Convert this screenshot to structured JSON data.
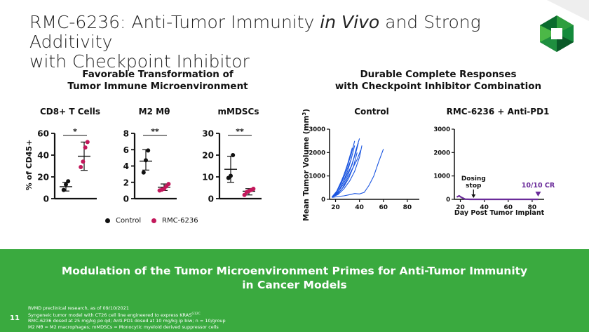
{
  "slide": {
    "title_part1": "RMC-6236: Anti-Tumor Immunity ",
    "title_italic": "in Vivo",
    "title_part2": " and Strong Additivity",
    "title_line2": "with Checkpoint Inhibitor",
    "page_number": "11",
    "colors": {
      "accent_green": "#3aaa3f",
      "pink": "#c2185b",
      "blue": "#1a55e0",
      "purple": "#6a2b9a",
      "dark_green": "#0b6b2e"
    }
  },
  "left_panel": {
    "heading_line1": "Favorable Transformation of",
    "heading_line2": "Tumor Immune Microenvironment",
    "ylabel": "% of CD45+",
    "legend": {
      "control": "Control",
      "treated": "RMC-6236"
    }
  },
  "right_panel": {
    "heading_line1": "Durable Complete Responses",
    "heading_line2": "with Checkpoint Inhibitor Combination",
    "ylabel": "Mean Tumor Volume (mm",
    "ylabel_sup": "3",
    "ylabel_end": ")",
    "xlabel": "Day Post Tumor Implant",
    "annotation_dosing_line1": "Dosing",
    "annotation_dosing_line2": "stop",
    "annotation_cr": "10/10 CR"
  },
  "banner": {
    "line1": "Modulation of the Tumor Microenvironment Primes for Anti-Tumor Immunity",
    "line2": "in Cancer Models"
  },
  "footnotes": {
    "line1": "RVMD preclinical research, as of 09/10/2021",
    "line2": "Syngeneic tumor model with CT26 cell line engineered to express KRAS",
    "line2_sup": "G12C",
    "line3": "RMC-6236 dosed at 25 mg/kg po qd; Anti-PD1 dosed at 10 mg/kg ip biw; n = 10/group",
    "line4": "M2 Mθ = M2 macrophages; mMDSCs = Monocytic myeloid derived suppressor cells"
  },
  "chart_data": [
    {
      "type": "scatter",
      "title": "CD8+ T Cells",
      "ylabel": "% of CD45+",
      "ylim": [
        0,
        60
      ],
      "yticks": [
        "0",
        "20",
        "40",
        "60"
      ],
      "significance": "*",
      "groups": [
        {
          "name": "Control",
          "color": "#111111",
          "points": [
            8,
            13,
            16
          ],
          "mean": 11,
          "sd": [
            7,
            15
          ]
        },
        {
          "name": "RMC-6236",
          "color": "#c2185b",
          "points": [
            29,
            34,
            47,
            52
          ],
          "mean": 39,
          "sd": [
            26,
            52
          ]
        }
      ]
    },
    {
      "type": "scatter",
      "title": "M2 Mθ",
      "ylim": [
        0,
        8
      ],
      "yticks": [
        "0",
        "2",
        "4",
        "6",
        "8"
      ],
      "significance": "**",
      "groups": [
        {
          "name": "Control",
          "color": "#111111",
          "points": [
            3.2,
            4.7,
            5.9
          ],
          "mean": 4.6,
          "sd": [
            3.5,
            6.0
          ]
        },
        {
          "name": "RMC-6236",
          "color": "#c2185b",
          "points": [
            1.0,
            1.1,
            1.2,
            1.5,
            1.8
          ],
          "mean": 1.4,
          "sd": [
            1.0,
            1.8
          ]
        }
      ]
    },
    {
      "type": "scatter",
      "title": "mMDSCs",
      "ylim": [
        0,
        30
      ],
      "yticks": [
        "0",
        "10",
        "20",
        "30"
      ],
      "significance": "**",
      "groups": [
        {
          "name": "Control",
          "color": "#111111",
          "points": [
            9.5,
            10.5,
            20
          ],
          "mean": 13.5,
          "sd": [
            7.5,
            19.5
          ]
        },
        {
          "name": "RMC-6236",
          "color": "#c2185b",
          "points": [
            1.7,
            3.0,
            3.5,
            4.0,
            4.5
          ],
          "mean": 3.4,
          "sd": [
            1.7,
            4.6
          ]
        }
      ]
    },
    {
      "type": "line",
      "title": "Control",
      "ylabel": "Mean Tumor Volume (mm3)",
      "xlim": [
        15,
        90
      ],
      "ylim": [
        0,
        3000
      ],
      "xticks": [
        "20",
        "40",
        "60",
        "80"
      ],
      "yticks": [
        "0",
        "1000",
        "2000",
        "3000"
      ],
      "series": [
        {
          "values": [
            [
              17,
              100
            ],
            [
              22,
              400
            ],
            [
              26,
              900
            ],
            [
              30,
              1500
            ],
            [
              34,
              2200
            ]
          ]
        },
        {
          "values": [
            [
              17,
              100
            ],
            [
              21,
              300
            ],
            [
              25,
              700
            ],
            [
              29,
              1200
            ],
            [
              33,
              1700
            ],
            [
              36,
              2300
            ]
          ]
        },
        {
          "values": [
            [
              17,
              100
            ],
            [
              21,
              200
            ],
            [
              25,
              600
            ],
            [
              29,
              1000
            ],
            [
              33,
              1400
            ],
            [
              37,
              2000
            ],
            [
              39,
              2400
            ]
          ]
        },
        {
          "values": [
            [
              17,
              100
            ],
            [
              22,
              250
            ],
            [
              26,
              500
            ],
            [
              30,
              900
            ],
            [
              34,
              1300
            ],
            [
              38,
              1700
            ],
            [
              41,
              2100
            ]
          ]
        },
        {
          "values": [
            [
              17,
              100
            ],
            [
              22,
              300
            ],
            [
              26,
              700
            ],
            [
              30,
              1200
            ],
            [
              33,
              1700
            ]
          ]
        },
        {
          "values": [
            [
              17,
              100
            ],
            [
              21,
              350
            ],
            [
              25,
              800
            ],
            [
              29,
              1300
            ],
            [
              33,
              1900
            ],
            [
              36,
              2500
            ]
          ]
        },
        {
          "values": [
            [
              17,
              100
            ],
            [
              22,
              250
            ],
            [
              27,
              550
            ],
            [
              31,
              900
            ],
            [
              35,
              1400
            ],
            [
              38,
              2000
            ]
          ]
        },
        {
          "values": [
            [
              17,
              100
            ],
            [
              22,
              200
            ],
            [
              27,
              450
            ],
            [
              32,
              800
            ],
            [
              36,
              1200
            ],
            [
              40,
              1800
            ],
            [
              42,
              2300
            ]
          ]
        },
        {
          "values": [
            [
              17,
              100
            ],
            [
              21,
              250
            ],
            [
              26,
              600
            ],
            [
              30,
              1000
            ],
            [
              34,
              1500
            ],
            [
              37,
              2100
            ],
            [
              40,
              2600
            ]
          ]
        },
        {
          "values": [
            [
              17,
              80
            ],
            [
              22,
              120
            ],
            [
              27,
              150
            ],
            [
              32,
              200
            ],
            [
              36,
              250
            ],
            [
              40,
              230
            ],
            [
              44,
              300
            ],
            [
              48,
              600
            ],
            [
              52,
              1000
            ],
            [
              56,
              1600
            ],
            [
              60,
              2150
            ]
          ]
        }
      ]
    },
    {
      "type": "line",
      "title": "RMC-6236 + Anti-PD1",
      "xlabel": "Day Post Tumor Implant",
      "xlim": [
        15,
        90
      ],
      "ylim": [
        0,
        3000
      ],
      "xticks": [
        "20",
        "40",
        "60",
        "80"
      ],
      "yticks": [
        "0",
        "1000",
        "2000",
        "3000"
      ],
      "dosing_stop_day": 31,
      "cr_marker_day": 85,
      "series": [
        {
          "values": [
            [
              17,
              100
            ],
            [
              19,
              150
            ],
            [
              21,
              80
            ],
            [
              24,
              10
            ],
            [
              28,
              0
            ],
            [
              40,
              0
            ],
            [
              60,
              0
            ],
            [
              85,
              0
            ]
          ]
        }
      ]
    }
  ]
}
